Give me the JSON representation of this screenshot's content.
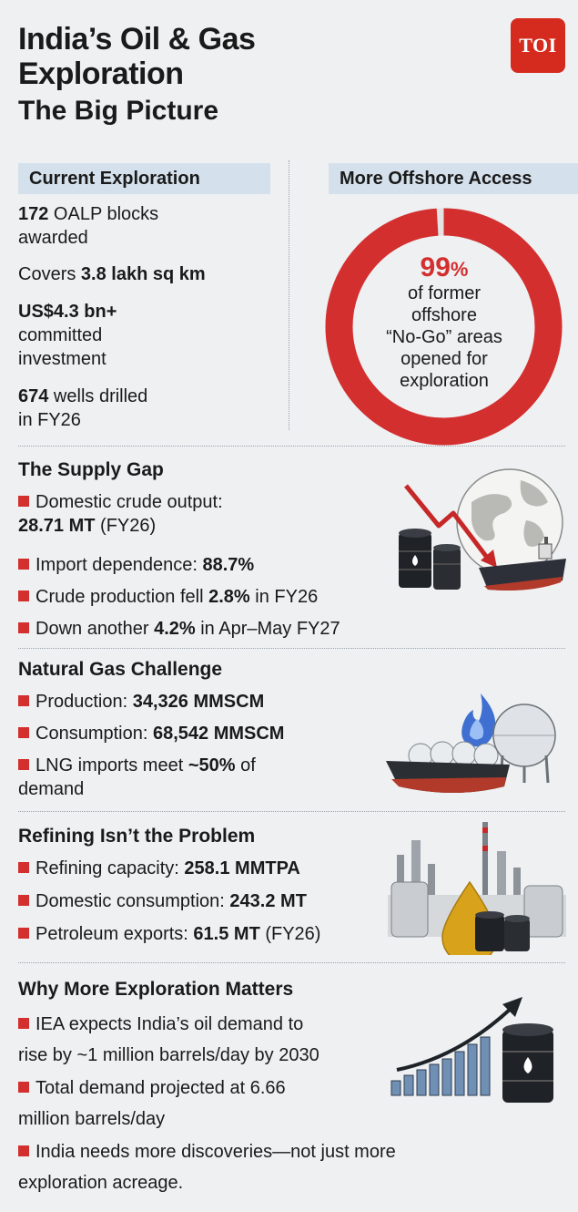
{
  "title": {
    "line1": "India’s Oil & Gas",
    "line2": "Exploration",
    "line3": "The Big Picture"
  },
  "logo": "TOI",
  "current_exploration": {
    "header": "Current Exploration",
    "blocks_value": "172",
    "blocks_text": " OALP blocks",
    "blocks_text2": "awarded",
    "area_prefix": "Covers ",
    "area_value": "3.8 lakh sq km",
    "investment_value": "US$4.3 bn+",
    "investment_text": "committed",
    "investment_text2": "investment",
    "wells_value": "674",
    "wells_text": " wells drilled",
    "wells_text2": "in FY26"
  },
  "offshore": {
    "header": "More Offshore Access",
    "value": "99",
    "unit": "%",
    "donut_fraction": 0.99,
    "lines": [
      "of former",
      "offshore",
      "“No-Go” areas",
      "opened for",
      "exploration"
    ]
  },
  "supply_gap": {
    "title": "The Supply Gap",
    "b1": "Domestic crude output:",
    "b1_value": "28.71 MT",
    "b1_suffix": " (FY26)",
    "b2": "Import dependence: ",
    "b2_value": "88.7%",
    "b3": "Crude production fell ",
    "b3_value": "2.8%",
    "b3_suffix": " in FY26",
    "b4": "Down another ",
    "b4_value": "4.2%",
    "b4_suffix": " in Apr–May FY27"
  },
  "natural_gas": {
    "title": "Natural Gas Challenge",
    "b1": "Production: ",
    "b1_value": "34,326 MMSCM",
    "b2": "Consumption: ",
    "b2_value": "68,542 MMSCM",
    "b3": "LNG imports meet ",
    "b3_value": "~50%",
    "b3_suffix": " of",
    "b3_line2": "demand"
  },
  "refining": {
    "title": "Refining Isn’t the Problem",
    "b1": "Refining capacity: ",
    "b1_value": "258.1 MMTPA",
    "b2": "Domestic consumption: ",
    "b2_value": "243.2 MT",
    "b3": "Petroleum exports: ",
    "b3_value": "61.5 MT",
    "b3_suffix": " (FY26)"
  },
  "why_exploration": {
    "title": "Why More Exploration Matters",
    "b1": "IEA expects India’s oil demand to",
    "b1_line2": "rise by ~1 million barrels/day by 2030",
    "b2": "Total demand projected at 6.66",
    "b2_line2": "million barrels/day",
    "b3": "India needs more discoveries—not just more",
    "b3_line2": "exploration acreage."
  },
  "colors": {
    "accent_red": "#d32f2f",
    "tag_blue": "#d4e1ec",
    "background": "#eef0f2",
    "donut_remainder": "#e3e3e3"
  },
  "icons": [
    "oil-barrels-icon",
    "crude-tanker-icon",
    "globe-icon",
    "falling-arrow-icon",
    "lng-carrier-icon",
    "gas-flame-icon",
    "storage-sphere-icon",
    "refinery-icon",
    "oil-drop-icon",
    "rising-bars-icon",
    "rising-arrow-icon"
  ]
}
